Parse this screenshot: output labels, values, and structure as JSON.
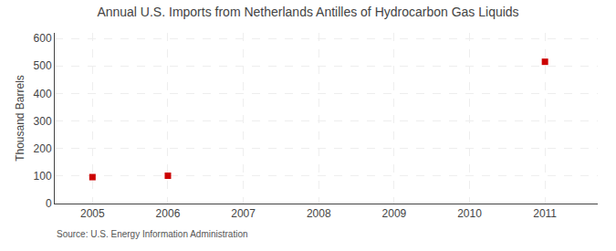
{
  "chart_data": {
    "type": "scatter",
    "title": "Annual U.S. Imports from Netherlands Antilles of Hydrocarbon Gas Liquids",
    "ylabel": "Thousand Barrels",
    "annotations": [
      "Source: U.S. Energy Information Administration"
    ],
    "x": [
      2005,
      2006,
      2011
    ],
    "values": [
      96,
      101,
      515
    ],
    "color": "#cc0000",
    "marker": "square",
    "xlim": [
      2004.5,
      2011.7
    ],
    "ylim": [
      0,
      620
    ],
    "xticks": [
      2005,
      2006,
      2007,
      2008,
      2009,
      2010,
      2011
    ],
    "yticks": [
      0,
      100,
      200,
      300,
      400,
      500,
      600
    ],
    "grid": true
  }
}
